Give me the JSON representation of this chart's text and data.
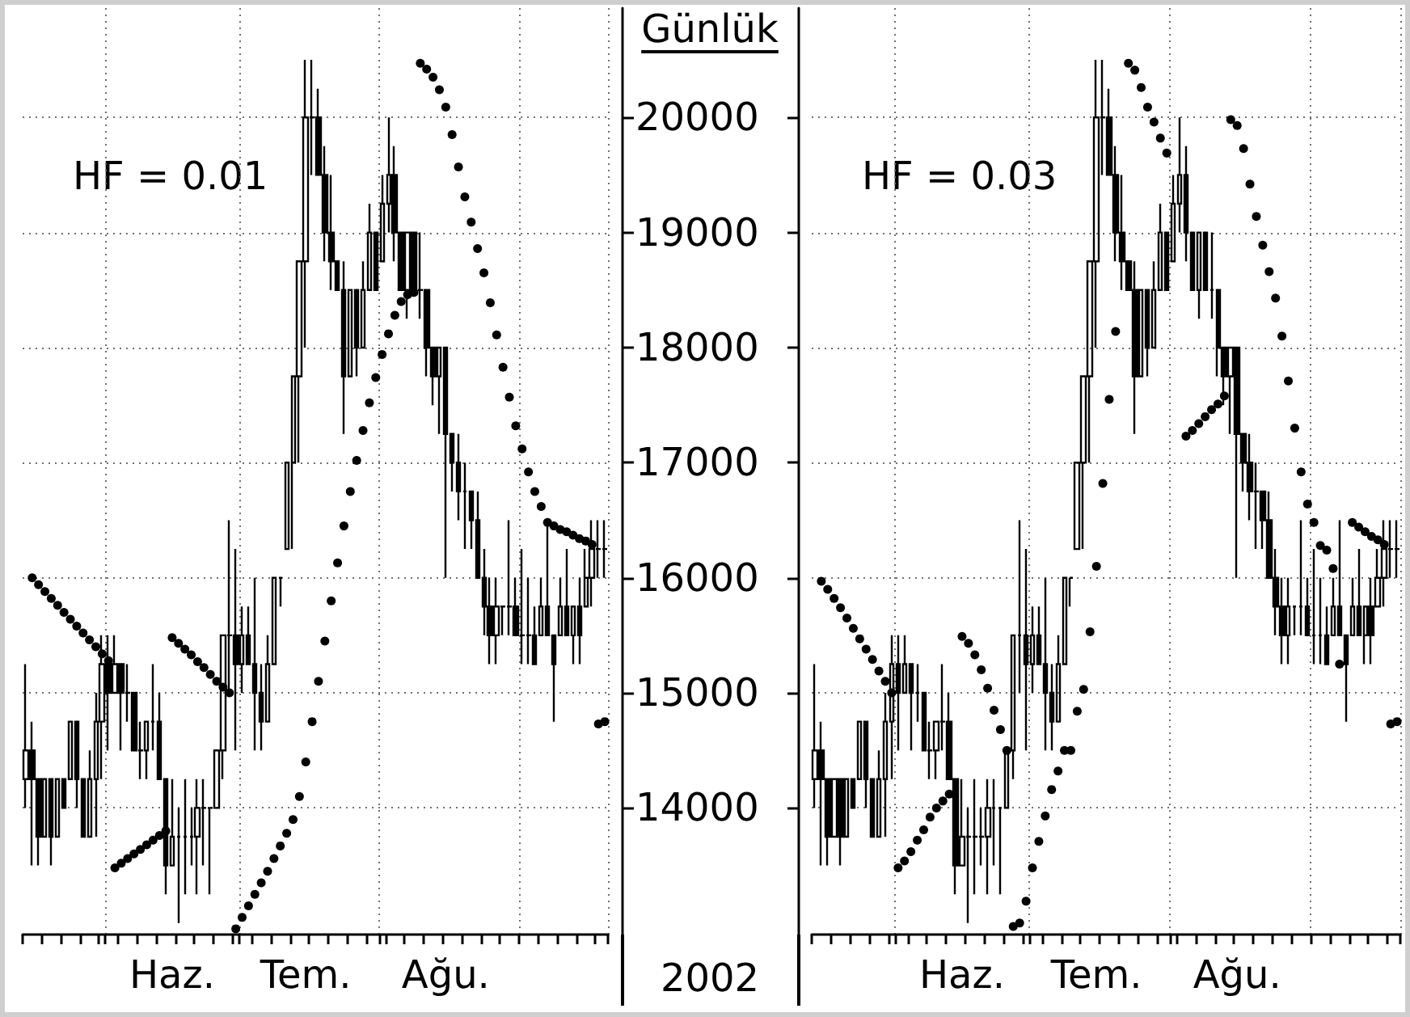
{
  "chart_data": [
    {
      "type": "candlestick",
      "title": "Günlük",
      "annotations": [
        "HF = 0.01",
        "2002"
      ],
      "categories": [
        null,
        null,
        null,
        null,
        null,
        null,
        null,
        null,
        null,
        null,
        null,
        null,
        null,
        null,
        null,
        null,
        null,
        null,
        null,
        null,
        null,
        null,
        null,
        "Haz.",
        null,
        null,
        null,
        null,
        null,
        null,
        null,
        null,
        null,
        null,
        null,
        null,
        null,
        null,
        null,
        null,
        null,
        null,
        null,
        null,
        "Tem.",
        null,
        null,
        null,
        null,
        null,
        null,
        null,
        null,
        null,
        null,
        null,
        null,
        null,
        null,
        null,
        null,
        null,
        null,
        null,
        null,
        null,
        "Ağu.",
        null,
        null,
        null,
        null,
        null,
        null,
        null,
        null,
        null,
        null,
        null,
        null,
        null,
        null,
        null,
        null,
        null,
        null,
        null,
        null,
        null,
        null,
        null,
        null,
        null
      ],
      "ohlc": [
        [
          14250,
          15250,
          14000,
          14500
        ],
        [
          14500,
          14750,
          13500,
          14250
        ],
        [
          14250,
          14250,
          13500,
          13750
        ],
        [
          13750,
          14250,
          13750,
          14250
        ],
        [
          14250,
          14250,
          13500,
          13750
        ],
        [
          13750,
          14250,
          13750,
          14250
        ],
        [
          14250,
          14250,
          14000,
          14000
        ],
        [
          14250,
          14750,
          14250,
          14750
        ],
        [
          14750,
          14750,
          14000,
          14250
        ],
        [
          14250,
          14250,
          13750,
          13750
        ],
        [
          13750,
          14500,
          13750,
          14250
        ],
        [
          14250,
          15000,
          13750,
          14750
        ],
        [
          14750,
          15500,
          14250,
          15250
        ],
        [
          15250,
          15500,
          14500,
          15000
        ],
        [
          15000,
          15500,
          15000,
          15250
        ],
        [
          15250,
          15250,
          14500,
          15000
        ],
        [
          15000,
          15250,
          14750,
          15000
        ],
        [
          15000,
          15000,
          14500,
          14500
        ],
        [
          14500,
          14750,
          14250,
          14500
        ],
        [
          14500,
          14750,
          14250,
          14750
        ],
        [
          14750,
          15250,
          14500,
          14750
        ],
        [
          14750,
          15000,
          14250,
          14250
        ],
        [
          14250,
          14250,
          13250,
          13500
        ],
        [
          13500,
          14250,
          13500,
          13750
        ],
        [
          13750,
          14000,
          13000,
          13750
        ],
        [
          13750,
          14250,
          13250,
          13750
        ],
        [
          13750,
          14000,
          13500,
          13750
        ],
        [
          13750,
          14250,
          13250,
          14000
        ],
        [
          14000,
          14250,
          13500,
          14000
        ],
        [
          14000,
          14000,
          13250,
          14000
        ],
        [
          14000,
          14500,
          14000,
          14500
        ],
        [
          14500,
          15500,
          14250,
          15500
        ],
        [
          15500,
          16500,
          15000,
          15500
        ],
        [
          15500,
          16250,
          14500,
          15250
        ],
        [
          15250,
          15750,
          15000,
          15500
        ],
        [
          15500,
          15750,
          15250,
          15250
        ],
        [
          15250,
          16000,
          14500,
          15000
        ],
        [
          15000,
          15250,
          14500,
          14750
        ],
        [
          14750,
          15500,
          14750,
          15250
        ],
        [
          15250,
          16000,
          15250,
          16000
        ],
        [
          16000,
          16000,
          15750,
          16000
        ],
        [
          16250,
          17000,
          16250,
          17000
        ],
        [
          17000,
          17750,
          16250,
          17750
        ],
        [
          17750,
          18750,
          17000,
          18750
        ],
        [
          18750,
          20500,
          18000,
          20000
        ],
        [
          20000,
          20500,
          19500,
          20000
        ],
        [
          20000,
          20250,
          19500,
          19500
        ],
        [
          19500,
          19750,
          18750,
          19000
        ],
        [
          19000,
          19500,
          18500,
          18750
        ],
        [
          18750,
          18750,
          18500,
          18500
        ],
        [
          18500,
          18750,
          17250,
          17750
        ],
        [
          17750,
          18500,
          17750,
          18500
        ],
        [
          18500,
          18500,
          17750,
          18000
        ],
        [
          18000,
          18750,
          18000,
          18500
        ],
        [
          18500,
          19250,
          18500,
          19000
        ],
        [
          19000,
          19000,
          18500,
          18500
        ],
        [
          18750,
          19500,
          18750,
          19250
        ],
        [
          19250,
          20000,
          19000,
          19500
        ],
        [
          19500,
          19750,
          18750,
          19000
        ],
        [
          19000,
          19000,
          18500,
          18500
        ],
        [
          18500,
          19000,
          18250,
          19000
        ],
        [
          19000,
          19000,
          18500,
          18500
        ],
        [
          18500,
          19000,
          18250,
          18500
        ],
        [
          18500,
          18500,
          17750,
          18000
        ],
        [
          18000,
          18000,
          17500,
          17750
        ],
        [
          17750,
          18000,
          17250,
          18000
        ],
        [
          18000,
          18000,
          16000,
          17250
        ],
        [
          17250,
          17250,
          16750,
          17000
        ],
        [
          17000,
          17250,
          16500,
          16750
        ],
        [
          16750,
          17000,
          16250,
          16750
        ],
        [
          16750,
          16750,
          16250,
          16500
        ],
        [
          16500,
          16750,
          16000,
          16000
        ],
        [
          16000,
          16250,
          15500,
          15750
        ],
        [
          15750,
          16000,
          15250,
          15500
        ],
        [
          15500,
          16000,
          15250,
          15750
        ],
        [
          15750,
          15750,
          15500,
          15750
        ],
        [
          15750,
          16500,
          15500,
          15750
        ],
        [
          15750,
          16000,
          15500,
          15500
        ],
        [
          15500,
          16250,
          15250,
          15500
        ],
        [
          15500,
          16000,
          15250,
          15500
        ],
        [
          15500,
          15750,
          15250,
          15250
        ],
        [
          15500,
          16000,
          15500,
          15750
        ],
        [
          15750,
          16500,
          15500,
          15500
        ],
        [
          15500,
          15500,
          14750,
          15250
        ],
        [
          15500,
          16000,
          15500,
          15750
        ],
        [
          15750,
          16250,
          15500,
          15500
        ],
        [
          15500,
          15750,
          15250,
          15750
        ],
        [
          15750,
          16000,
          15250,
          15500
        ],
        [
          15750,
          16250,
          15750,
          16000
        ],
        [
          16000,
          16500,
          15750,
          16250
        ],
        [
          16250,
          16500,
          16000,
          16250
        ],
        [
          16250,
          16500,
          16000,
          16250
        ]
      ],
      "color": "#000000",
      "series": [
        {
          "type": "scatter",
          "marker": "circle",
          "color": "#000000",
          "values": [
            null,
            16000,
            15940,
            15880,
            15820,
            15760,
            15700,
            15640,
            15580,
            15520,
            15460,
            15400,
            15340,
            15280,
            13480,
            13520,
            13560,
            13600,
            13640,
            13680,
            13720,
            13760,
            13800,
            15480,
            15430,
            15380,
            15330,
            15270,
            15220,
            15160,
            15100,
            15050,
            15000,
            12950,
            13050,
            13150,
            13250,
            13350,
            13450,
            13560,
            13670,
            13780,
            13900,
            14100,
            14400,
            14750,
            15100,
            15450,
            15800,
            16130,
            16450,
            16750,
            17020,
            17280,
            17520,
            17740,
            17940,
            18120,
            18280,
            18400,
            18460,
            18480,
            20470,
            20420,
            20350,
            20240,
            20090,
            19850,
            19570,
            19310,
            19090,
            18860,
            18650,
            18390,
            18110,
            17830,
            17570,
            17320,
            17120,
            16920,
            16750,
            16620,
            16480,
            16450,
            16420,
            16400,
            16370,
            16340,
            16320,
            16290,
            14730,
            14750
          ]
        }
      ],
      "ylim": [
        12900,
        20950
      ],
      "yticks": [
        14000,
        15000,
        16000,
        17000,
        18000,
        19000,
        20000
      ],
      "grid": true
    },
    {
      "type": "candlestick",
      "annotations": [
        "HF = 0.03"
      ],
      "categories": [
        null,
        null,
        null,
        null,
        null,
        null,
        null,
        null,
        null,
        null,
        null,
        null,
        null,
        null,
        null,
        null,
        null,
        null,
        null,
        null,
        null,
        null,
        null,
        "Haz.",
        null,
        null,
        null,
        null,
        null,
        null,
        null,
        null,
        null,
        null,
        null,
        null,
        null,
        null,
        null,
        null,
        null,
        null,
        null,
        null,
        "Tem.",
        null,
        null,
        null,
        null,
        null,
        null,
        null,
        null,
        null,
        null,
        null,
        null,
        null,
        null,
        null,
        null,
        null,
        null,
        null,
        null,
        null,
        "Ağu.",
        null,
        null,
        null,
        null,
        null,
        null,
        null,
        null,
        null,
        null,
        null,
        null,
        null,
        null,
        null,
        null,
        null,
        null,
        null,
        null,
        null,
        null,
        null,
        null,
        null
      ],
      "ohlc": [
        [
          14250,
          15250,
          14000,
          14500
        ],
        [
          14500,
          14750,
          13500,
          14250
        ],
        [
          14250,
          14250,
          13500,
          13750
        ],
        [
          13750,
          14250,
          13750,
          14250
        ],
        [
          14250,
          14250,
          13500,
          13750
        ],
        [
          13750,
          14250,
          13750,
          14250
        ],
        [
          14250,
          14250,
          14000,
          14000
        ],
        [
          14250,
          14750,
          14250,
          14750
        ],
        [
          14750,
          14750,
          14000,
          14250
        ],
        [
          14250,
          14250,
          13750,
          13750
        ],
        [
          13750,
          14500,
          13750,
          14250
        ],
        [
          14250,
          15000,
          13750,
          14750
        ],
        [
          14750,
          15500,
          14250,
          15250
        ],
        [
          15250,
          15500,
          14500,
          15000
        ],
        [
          15000,
          15500,
          15000,
          15250
        ],
        [
          15250,
          15250,
          14500,
          15000
        ],
        [
          15000,
          15250,
          14750,
          15000
        ],
        [
          15000,
          15000,
          14500,
          14500
        ],
        [
          14500,
          14750,
          14250,
          14500
        ],
        [
          14500,
          14750,
          14250,
          14750
        ],
        [
          14750,
          15250,
          14500,
          14750
        ],
        [
          14750,
          15000,
          14250,
          14250
        ],
        [
          14250,
          14250,
          13250,
          13500
        ],
        [
          13500,
          14250,
          13500,
          13750
        ],
        [
          13750,
          14000,
          13000,
          13750
        ],
        [
          13750,
          14250,
          13250,
          13750
        ],
        [
          13750,
          14000,
          13500,
          13750
        ],
        [
          13750,
          14250,
          13250,
          14000
        ],
        [
          14000,
          14250,
          13500,
          14000
        ],
        [
          14000,
          14000,
          13250,
          14000
        ],
        [
          14000,
          14500,
          14000,
          14500
        ],
        [
          14500,
          15500,
          14250,
          15500
        ],
        [
          15500,
          16500,
          15000,
          15500
        ],
        [
          15500,
          16250,
          14500,
          15250
        ],
        [
          15250,
          15750,
          15000,
          15500
        ],
        [
          15500,
          15750,
          15250,
          15250
        ],
        [
          15250,
          16000,
          14500,
          15000
        ],
        [
          15000,
          15250,
          14500,
          14750
        ],
        [
          14750,
          15500,
          14750,
          15250
        ],
        [
          15250,
          16000,
          15250,
          16000
        ],
        [
          16000,
          16000,
          15750,
          16000
        ],
        [
          16250,
          17000,
          16250,
          17000
        ],
        [
          17000,
          17750,
          16250,
          17750
        ],
        [
          17750,
          18750,
          17000,
          18750
        ],
        [
          18750,
          20500,
          18000,
          20000
        ],
        [
          20000,
          20500,
          19500,
          20000
        ],
        [
          20000,
          20250,
          19500,
          19500
        ],
        [
          19500,
          19750,
          18750,
          19000
        ],
        [
          19000,
          19500,
          18500,
          18750
        ],
        [
          18750,
          18750,
          18500,
          18500
        ],
        [
          18500,
          18750,
          17250,
          17750
        ],
        [
          17750,
          18500,
          17750,
          18500
        ],
        [
          18500,
          18500,
          17750,
          18000
        ],
        [
          18000,
          18750,
          18000,
          18500
        ],
        [
          18500,
          19250,
          18500,
          19000
        ],
        [
          19000,
          19000,
          18500,
          18500
        ],
        [
          18750,
          19500,
          18750,
          19250
        ],
        [
          19250,
          20000,
          19000,
          19500
        ],
        [
          19500,
          19750,
          18750,
          19000
        ],
        [
          19000,
          19000,
          18500,
          18500
        ],
        [
          18500,
          19000,
          18250,
          19000
        ],
        [
          19000,
          19000,
          18500,
          18500
        ],
        [
          18500,
          19000,
          18250,
          18500
        ],
        [
          18500,
          18500,
          17750,
          18000
        ],
        [
          18000,
          18000,
          17500,
          17750
        ],
        [
          17750,
          18000,
          17250,
          18000
        ],
        [
          18000,
          18000,
          16000,
          17250
        ],
        [
          17250,
          17250,
          16750,
          17000
        ],
        [
          17000,
          17250,
          16500,
          16750
        ],
        [
          16750,
          17000,
          16250,
          16750
        ],
        [
          16750,
          16750,
          16250,
          16500
        ],
        [
          16500,
          16750,
          16000,
          16000
        ],
        [
          16000,
          16250,
          15500,
          15750
        ],
        [
          15750,
          16000,
          15250,
          15500
        ],
        [
          15500,
          16000,
          15250,
          15750
        ],
        [
          15750,
          15750,
          15500,
          15750
        ],
        [
          15750,
          16500,
          15500,
          15750
        ],
        [
          15750,
          16000,
          15500,
          15500
        ],
        [
          15500,
          16250,
          15250,
          15500
        ],
        [
          15500,
          16000,
          15250,
          15500
        ],
        [
          15500,
          15750,
          15250,
          15250
        ],
        [
          15500,
          16000,
          15500,
          15750
        ],
        [
          15750,
          16500,
          15500,
          15500
        ],
        [
          15500,
          15500,
          14750,
          15250
        ],
        [
          15500,
          16000,
          15500,
          15750
        ],
        [
          15750,
          16250,
          15500,
          15500
        ],
        [
          15500,
          15750,
          15250,
          15750
        ],
        [
          15750,
          16000,
          15250,
          15500
        ],
        [
          15750,
          16250,
          15750,
          16000
        ],
        [
          16000,
          16500,
          15750,
          16250
        ],
        [
          16250,
          16500,
          16000,
          16250
        ],
        [
          16250,
          16500,
          16000,
          16250
        ]
      ],
      "color": "#000000",
      "series": [
        {
          "type": "scatter",
          "marker": "circle",
          "color": "#000000",
          "values": [
            null,
            15970,
            15900,
            15820,
            15740,
            15650,
            15560,
            15470,
            15380,
            15290,
            15190,
            15100,
            15000,
            13480,
            13540,
            13620,
            13720,
            13810,
            13920,
            14000,
            14060,
            14120,
            null,
            15490,
            15430,
            15330,
            15200,
            15040,
            14850,
            14680,
            14500,
            12970,
            13000,
            13190,
            13480,
            13710,
            13930,
            14160,
            14320,
            14500,
            14500,
            14840,
            15030,
            15530,
            16100,
            16820,
            17550,
            18140,
            null,
            20470,
            20410,
            20260,
            20090,
            19960,
            19820,
            19690,
            null,
            null,
            17230,
            17280,
            17340,
            17400,
            17460,
            17510,
            17580,
            19980,
            19930,
            19730,
            19420,
            19140,
            18890,
            18660,
            18430,
            18100,
            17710,
            17300,
            16920,
            16640,
            16480,
            16280,
            16240,
            16080,
            15250,
            null,
            16480,
            16440,
            16400,
            16360,
            16330,
            16290,
            14730,
            14750
          ]
        }
      ],
      "ylim": [
        12900,
        20950
      ],
      "yticks": [
        14000,
        15000,
        16000,
        17000,
        18000,
        19000,
        20000
      ],
      "grid": true,
      "tick_labels": "x"
    }
  ]
}
